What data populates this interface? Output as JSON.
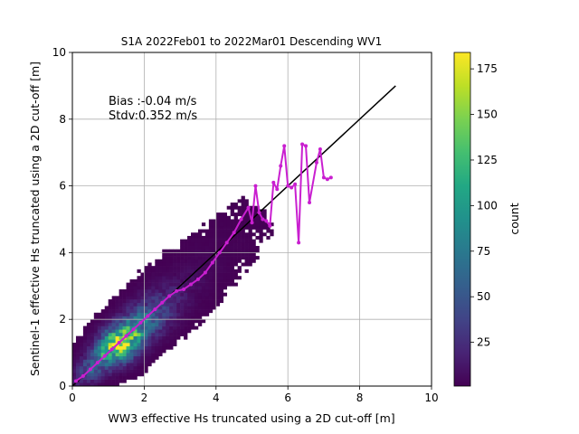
{
  "chart_data": {
    "type": "heatmap",
    "title": "S1A 2022Feb01 to 2022Mar01 Descending WV1",
    "xlabel": "WW3 effective Hs truncated using a 2D cut-off [m]",
    "ylabel": "Sentinel-1 effective Hs truncated using a 2D cut-off [m]",
    "xlim": [
      0,
      10
    ],
    "ylim": [
      0,
      10
    ],
    "xticks": [
      "0",
      "2",
      "4",
      "6",
      "8",
      "10"
    ],
    "yticks": [
      "0",
      "2",
      "4",
      "6",
      "8",
      "10"
    ],
    "grid": true,
    "annotations": [
      "Bias :-0.04 m/s",
      "Stdv:0.352 m/s"
    ],
    "colorbar": {
      "label": "count",
      "colormap": "viridis",
      "range": [
        1,
        184
      ],
      "ticks": [
        "25",
        "50",
        "75",
        "100",
        "125",
        "150",
        "175"
      ]
    },
    "reference_line": {
      "x": [
        0,
        9
      ],
      "y": [
        0,
        9
      ],
      "color": "#000000"
    },
    "binned_mean": {
      "color": "#c91fd0",
      "x": [
        0.1,
        0.3,
        0.5,
        0.7,
        0.9,
        1.1,
        1.3,
        1.5,
        1.7,
        1.9,
        2.1,
        2.3,
        2.5,
        2.7,
        2.9,
        3.1,
        3.3,
        3.5,
        3.7,
        3.9,
        4.1,
        4.3,
        4.5,
        4.7,
        4.9,
        5.0,
        5.1,
        5.2,
        5.3,
        5.4,
        5.5,
        5.6,
        5.7,
        5.8,
        5.9,
        6.0,
        6.1,
        6.2,
        6.3,
        6.4,
        6.5,
        6.6,
        6.8,
        6.9,
        7.0,
        7.1,
        7.2
      ],
      "y": [
        0.15,
        0.3,
        0.5,
        0.7,
        0.9,
        1.1,
        1.3,
        1.5,
        1.7,
        1.9,
        2.1,
        2.3,
        2.5,
        2.7,
        2.85,
        2.9,
        3.05,
        3.2,
        3.4,
        3.7,
        4.0,
        4.3,
        4.6,
        5.0,
        5.35,
        4.9,
        6.0,
        5.2,
        5.0,
        4.95,
        4.8,
        6.1,
        5.9,
        6.6,
        7.2,
        6.0,
        5.95,
        6.05,
        4.3,
        7.25,
        7.2,
        5.5,
        6.7,
        7.1,
        6.25,
        6.2,
        6.25
      ]
    },
    "density_ridge": [
      {
        "x": 0.2,
        "y": 0.2,
        "w": 0.5,
        "peak": 20
      },
      {
        "x": 0.6,
        "y": 0.6,
        "w": 0.7,
        "peak": 60
      },
      {
        "x": 1.0,
        "y": 1.0,
        "w": 0.8,
        "peak": 120
      },
      {
        "x": 1.3,
        "y": 1.25,
        "w": 0.9,
        "peak": 184
      },
      {
        "x": 1.6,
        "y": 1.55,
        "w": 0.9,
        "peak": 140
      },
      {
        "x": 2.0,
        "y": 1.95,
        "w": 1.0,
        "peak": 80
      },
      {
        "x": 2.4,
        "y": 2.35,
        "w": 1.1,
        "peak": 40
      },
      {
        "x": 2.8,
        "y": 2.75,
        "w": 1.2,
        "peak": 18
      },
      {
        "x": 3.3,
        "y": 3.2,
        "w": 1.3,
        "peak": 8
      },
      {
        "x": 3.8,
        "y": 3.7,
        "w": 1.4,
        "peak": 4
      },
      {
        "x": 4.4,
        "y": 4.3,
        "w": 1.5,
        "peak": 2
      },
      {
        "x": 5.0,
        "y": 5.0,
        "w": 1.5,
        "peak": 1
      }
    ]
  }
}
